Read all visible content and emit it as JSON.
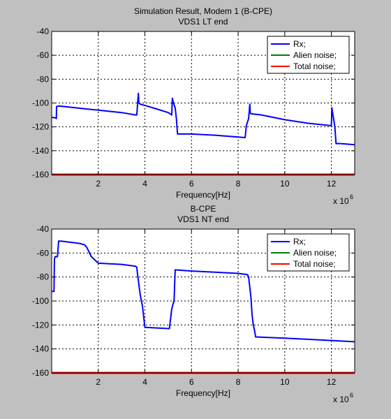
{
  "chart_data": [
    {
      "type": "line",
      "title": [
        "Simulation Result, Modem 1 (B-CPE)",
        "VDS1 LT end"
      ],
      "xlabel": "Frequency[Hz]",
      "ylabel": "",
      "x_exponent_label": "x 10",
      "x_exponent": "6",
      "xlim": [
        0,
        13
      ],
      "ylim": [
        -160,
        -40
      ],
      "xticks": [
        2,
        4,
        6,
        8,
        10,
        12
      ],
      "xtick_labels": [
        "2",
        "4",
        "6",
        "8",
        "10",
        "12"
      ],
      "yticks": [
        -40,
        -60,
        -80,
        -100,
        -120,
        -140,
        -160
      ],
      "ytick_labels": [
        "-40",
        "-60",
        "-80",
        "-100",
        "-120",
        "-140",
        "-160"
      ],
      "grid": true,
      "legend_position": "top-right",
      "series": [
        {
          "name": "Rx;",
          "color": "#0000ff",
          "x": [
            0,
            0.18,
            0.2,
            0.21,
            0.3,
            1.0,
            2.0,
            3.0,
            3.6,
            3.65,
            3.7,
            3.72,
            3.74,
            3.8,
            4.0,
            4.5,
            5.0,
            5.15,
            5.18,
            5.22,
            5.3,
            5.35,
            5.4,
            6.0,
            7.0,
            8.0,
            8.3,
            8.35,
            8.45,
            8.5,
            8.52,
            8.55,
            9.0,
            10.0,
            11.0,
            12.0,
            12.02,
            12.05,
            12.1,
            12.15,
            12.2,
            12.4,
            13.0
          ],
          "y": [
            -112,
            -112.5,
            -113,
            -103,
            -102.5,
            -104,
            -106,
            -108,
            -110,
            -110,
            -97,
            -92,
            -100,
            -101,
            -102,
            -105,
            -108,
            -110,
            -96,
            -100,
            -104,
            -113,
            -126,
            -126,
            -127,
            -128.5,
            -129,
            -119,
            -113,
            -101,
            -108,
            -109,
            -110,
            -114,
            -117,
            -119,
            -104,
            -108,
            -114,
            -120,
            -134,
            -134,
            -135
          ]
        },
        {
          "name": "Alien noise;",
          "color": "#008000",
          "x": [
            0,
            13
          ],
          "y": [
            -160,
            -160
          ]
        },
        {
          "name": "Total noise;",
          "color": "#ff0000",
          "x": [
            0,
            13
          ],
          "y": [
            -160,
            -160
          ]
        }
      ]
    },
    {
      "type": "line",
      "title": [
        "B-CPE",
        "VDS1 NT end"
      ],
      "xlabel": "Frequency[Hz]",
      "ylabel": "",
      "x_exponent_label": "x 10",
      "x_exponent": "6",
      "xlim": [
        0,
        13
      ],
      "ylim": [
        -160,
        -40
      ],
      "xticks": [
        2,
        4,
        6,
        8,
        10,
        12
      ],
      "xtick_labels": [
        "2",
        "4",
        "6",
        "8",
        "10",
        "12"
      ],
      "yticks": [
        -40,
        -60,
        -80,
        -100,
        -120,
        -140,
        -160
      ],
      "ytick_labels": [
        "-40",
        "-60",
        "-80",
        "-100",
        "-120",
        "-140",
        "-160"
      ],
      "grid": true,
      "legend_position": "top-right",
      "series": [
        {
          "name": "Rx;",
          "color": "#0000ff",
          "x": [
            0,
            0.1,
            0.12,
            0.15,
            0.25,
            0.3,
            0.4,
            1.0,
            1.2,
            1.4,
            1.5,
            1.7,
            2.0,
            3.0,
            3.6,
            3.65,
            3.7,
            3.8,
            3.9,
            4.0,
            5.0,
            5.05,
            5.1,
            5.15,
            5.2,
            5.25,
            5.3,
            6.0,
            7.0,
            8.0,
            8.4,
            8.45,
            8.55,
            8.6,
            8.65,
            8.7,
            8.75,
            10.0,
            11.0,
            12.0,
            13.0
          ],
          "y": [
            -92,
            -92,
            -65,
            -63,
            -63,
            -50,
            -50,
            -51.5,
            -52,
            -53,
            -55,
            -63,
            -68.5,
            -69.5,
            -71,
            -72,
            -80,
            -95,
            -105,
            -122,
            -123,
            -123,
            -115,
            -107,
            -103,
            -100,
            -74,
            -75,
            -76,
            -77,
            -78,
            -80,
            -97,
            -112,
            -120,
            -124,
            -130,
            -131,
            -132,
            -133,
            -134
          ]
        },
        {
          "name": "Alien noise;",
          "color": "#008000",
          "x": [
            0,
            13
          ],
          "y": [
            -160,
            -160
          ]
        },
        {
          "name": "Total noise;",
          "color": "#ff0000",
          "x": [
            0,
            13
          ],
          "y": [
            -160,
            -160
          ]
        }
      ]
    }
  ]
}
